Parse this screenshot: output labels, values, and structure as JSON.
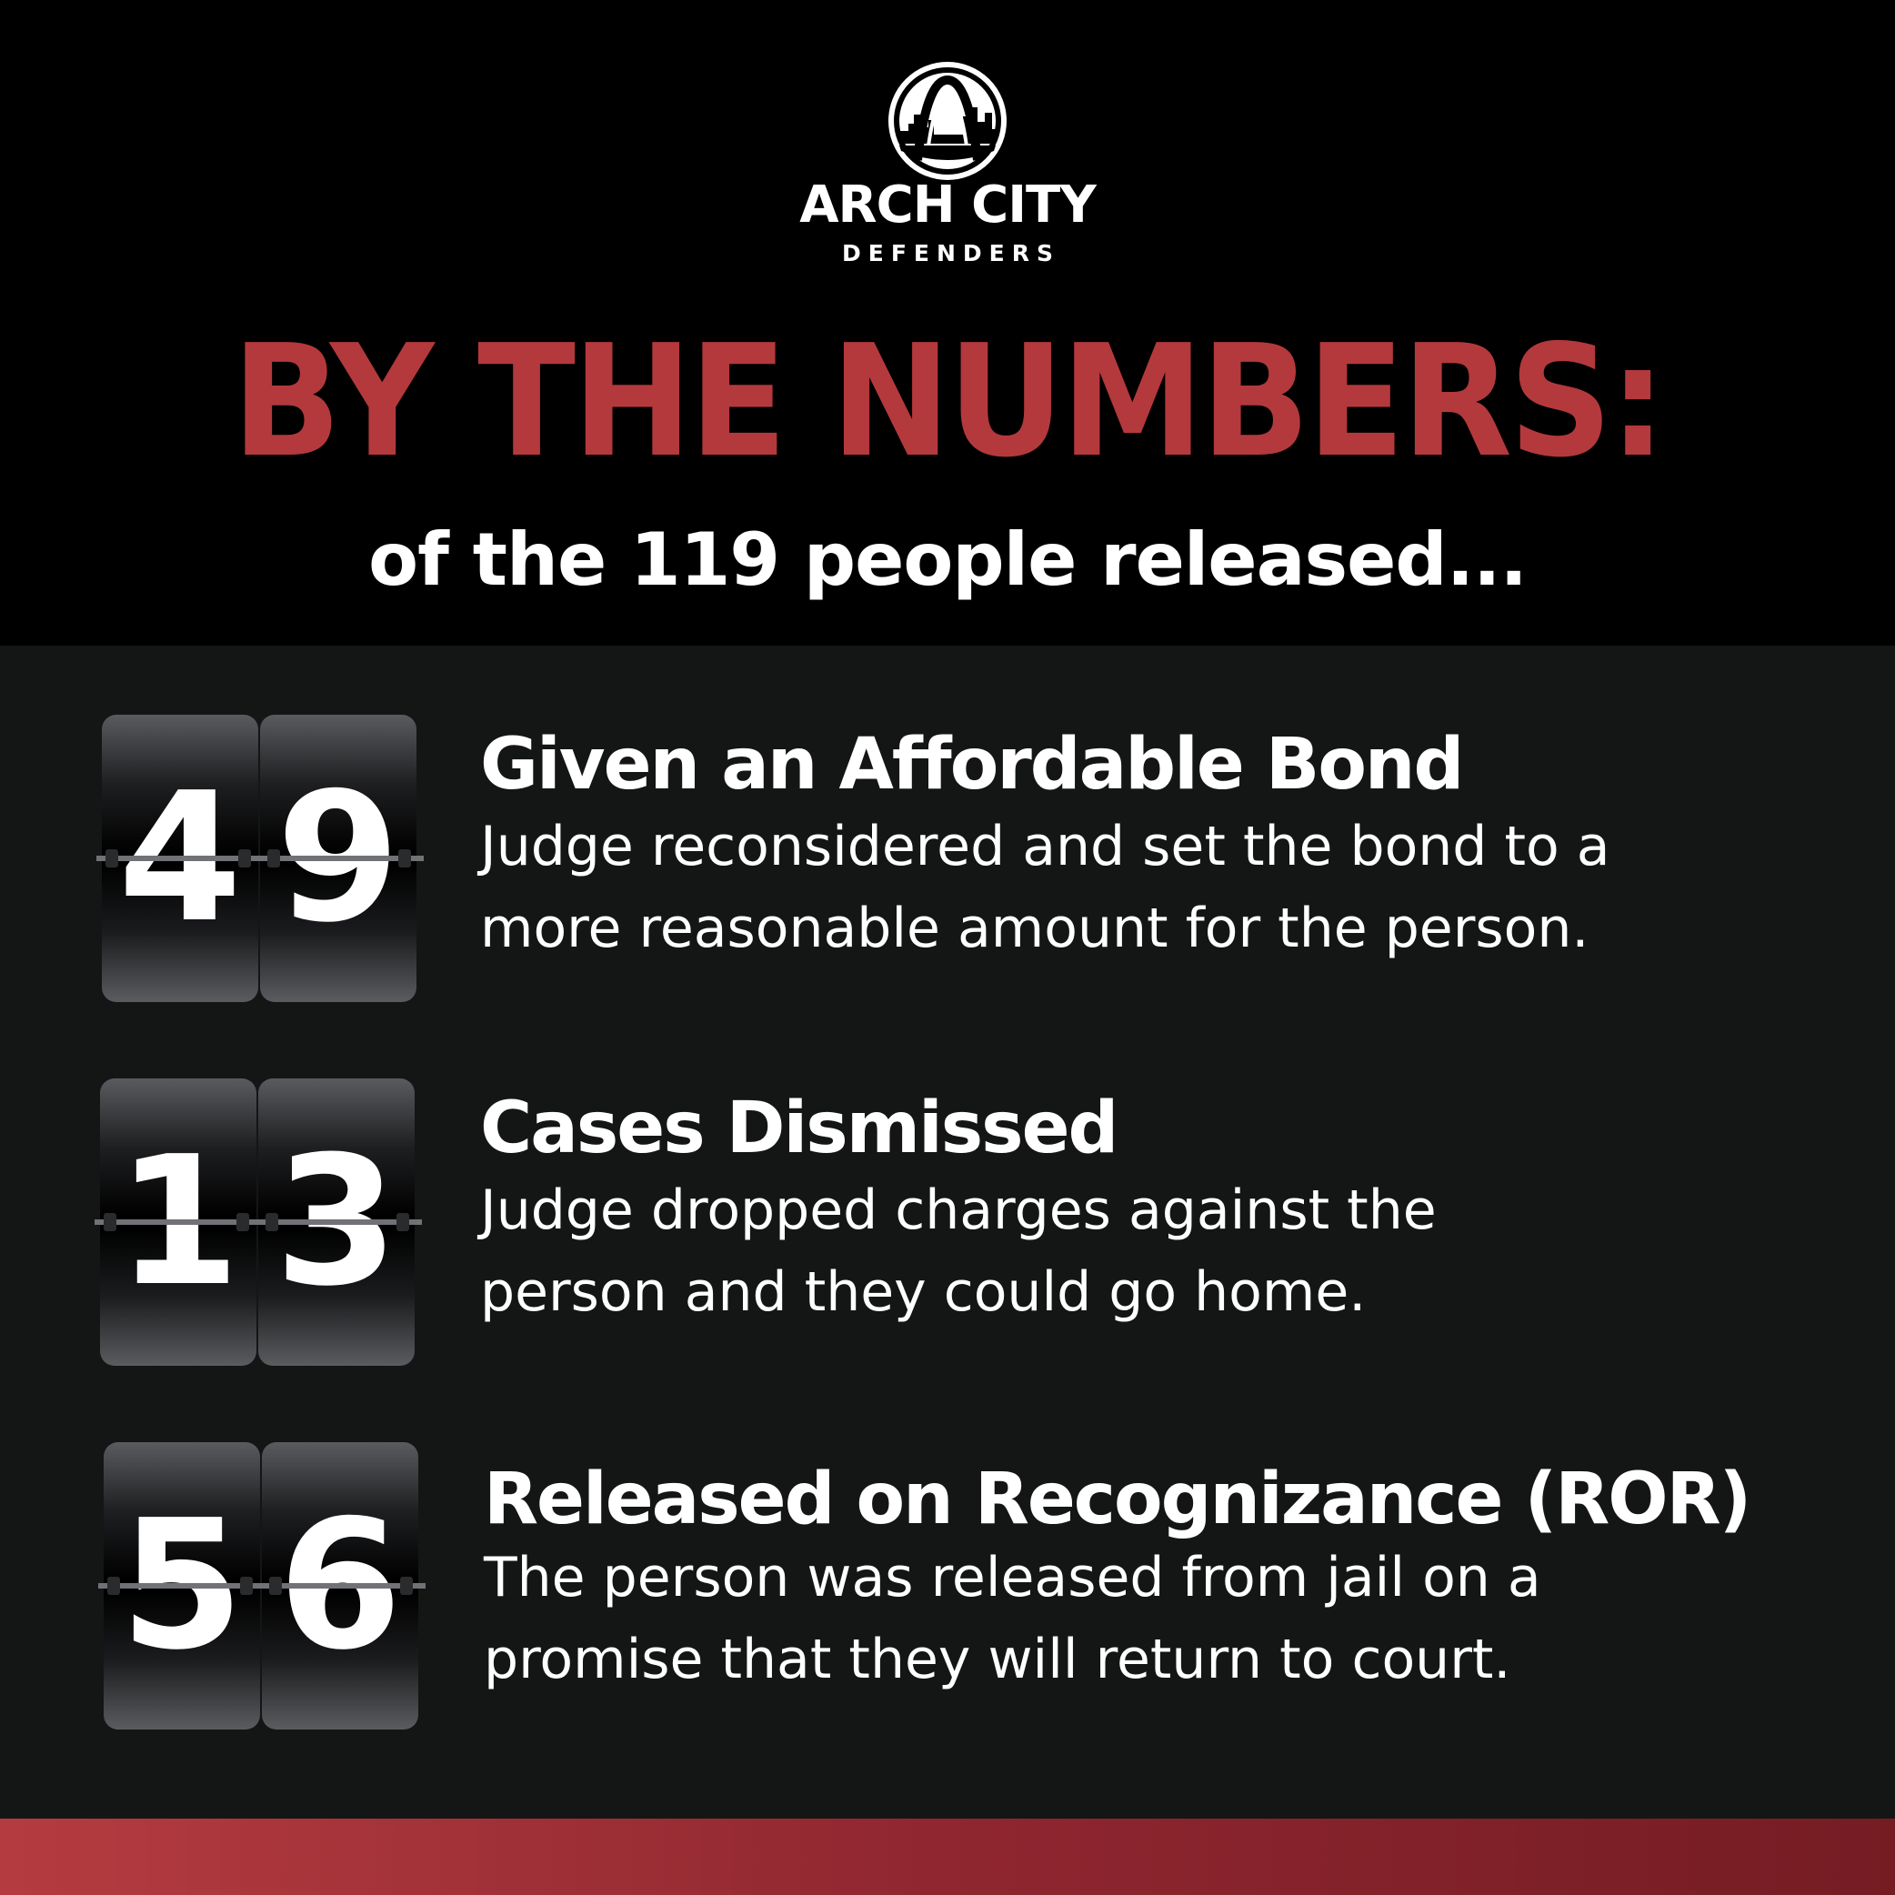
{
  "logo": {
    "name_line1": "ARCH CITY",
    "name_line2": "DEFENDERS",
    "icon": "arch-skyline-logo-icon"
  },
  "heading": {
    "title": "BY THE NUMBERS:",
    "subtitle": "of the 119 people released..."
  },
  "stats": [
    {
      "digits": [
        "4",
        "9"
      ],
      "title": "Given an Affordable Bond",
      "description_lines": [
        "Judge reconsidered and set the bond to a",
        "more reasonable amount for the person."
      ]
    },
    {
      "digits": [
        "1",
        "3"
      ],
      "title": "Cases Dismissed",
      "description_lines": [
        "Judge dropped charges against the",
        "person and they could go home."
      ]
    },
    {
      "digits": [
        "5",
        "6"
      ],
      "title": "Released on Recognizance (ROR)",
      "description_lines": [
        "The person was released from jail on a",
        "promise that they will return to court."
      ]
    }
  ],
  "colors": {
    "accent_red": "#b4393c",
    "background_dark": "#141616",
    "background_black": "#000000"
  }
}
